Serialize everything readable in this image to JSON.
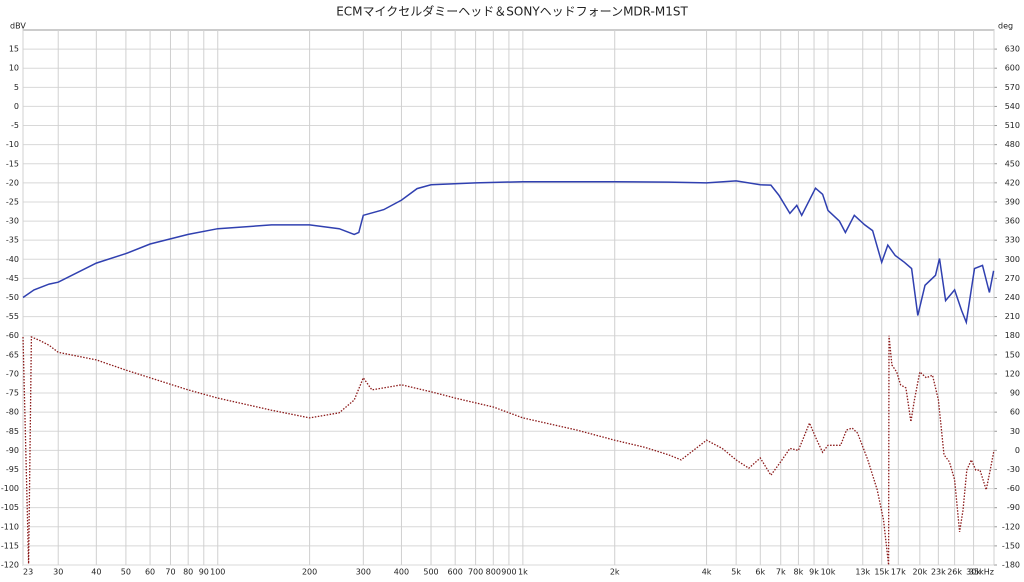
{
  "chart_data": {
    "type": "line",
    "title": "ECMマイクセルダミーヘッド＆SONYヘッドフォーンMDR-M1ST",
    "y_label": "dBV",
    "y2_label": "deg",
    "xscale": "log",
    "grid": true,
    "xlim": [
      23,
      35000
    ],
    "xticks": [
      23,
      30,
      40,
      50,
      60,
      70,
      80,
      90,
      100,
      200,
      300,
      400,
      500,
      600,
      700,
      800,
      900,
      {
        "value": 1000,
        "label": "1k"
      },
      {
        "value": 2000,
        "label": "2k"
      },
      {
        "value": 4000,
        "label": "4k"
      },
      {
        "value": 5000,
        "label": "5k"
      },
      {
        "value": 6000,
        "label": "6k"
      },
      {
        "value": 7000,
        "label": "7k"
      },
      {
        "value": 8000,
        "label": "8k"
      },
      {
        "value": 9000,
        "label": "9k"
      },
      {
        "value": 10000,
        "label": "10k"
      },
      {
        "value": 13000,
        "label": "13k"
      },
      {
        "value": 15000,
        "label": "15k"
      },
      {
        "value": 17000,
        "label": "17k"
      },
      {
        "value": 20000,
        "label": "20k"
      },
      {
        "value": 23000,
        "label": "23k"
      },
      {
        "value": 26000,
        "label": "26k"
      },
      {
        "value": 30000,
        "label": "30k"
      },
      {
        "value": 35000,
        "label": "35kHz"
      }
    ],
    "ylim": [
      -120,
      20
    ],
    "yticks": [
      -120,
      -115,
      -110,
      -105,
      -100,
      -95,
      -90,
      -85,
      -80,
      -75,
      -70,
      -65,
      -60,
      -55,
      -50,
      -45,
      -40,
      -35,
      -30,
      -25,
      -20,
      -15,
      -10,
      -5,
      0,
      5,
      10,
      15
    ],
    "y2lim": [
      -180,
      660
    ],
    "y2ticks": [
      -180,
      -150,
      -120,
      -90,
      -60,
      -30,
      0,
      30,
      60,
      90,
      120,
      150,
      180,
      210,
      240,
      270,
      300,
      330,
      360,
      390,
      420,
      450,
      480,
      510,
      540,
      570,
      600,
      630
    ],
    "series": [
      {
        "color": "#3040b0",
        "style": "solid",
        "x": [
          23,
          25,
          28,
          30,
          40,
          50,
          60,
          80,
          100,
          150,
          200,
          250,
          280,
          290,
          300,
          350,
          400,
          450,
          500,
          700,
          1000,
          2000,
          3000,
          4000,
          5000,
          6000,
          6500,
          6900,
          7500,
          7900,
          8200,
          9100,
          9600,
          10000,
          10900,
          11400,
          12200,
          13200,
          14000,
          15000,
          15700,
          16600,
          17800,
          18800,
          19700,
          20800,
          22500,
          23200,
          24300,
          26000,
          27400,
          28400,
          30200,
          32100,
          33800,
          34900
        ],
        "values": [
          -50,
          -48,
          -46.5,
          -46,
          -41,
          -38.5,
          -36,
          -33.5,
          -32,
          -31,
          -31,
          -32,
          -33.5,
          -33,
          -28.5,
          -27,
          -24.5,
          -21.5,
          -20.5,
          -20,
          -19.7,
          -19.7,
          -19.8,
          -20,
          -19.5,
          -20.5,
          -20.6,
          -23.2,
          -28,
          -25.9,
          -28.5,
          -21.4,
          -23,
          -27.2,
          -30,
          -33,
          -28.5,
          -31,
          -32.5,
          -40.8,
          -36.3,
          -39,
          -40.8,
          -42.4,
          -54.7,
          -46.8,
          -44.2,
          -39.8,
          -50.8,
          -48,
          -53.4,
          -56.5,
          -42.4,
          -41.6,
          -48.7,
          -43
        ]
      },
      {
        "color": "#8b1a1a",
        "style": "dotted",
        "axis": "y2",
        "x": [
          23,
          24,
          24.5,
          26,
          28,
          30,
          40,
          50,
          60,
          80,
          100,
          150,
          200,
          250,
          280,
          300,
          320,
          400,
          500,
          600,
          800,
          1000,
          1500,
          2000,
          2500,
          3000,
          3300,
          4000,
          4500,
          5000,
          5500,
          6000,
          6500,
          7000,
          7500,
          8000,
          8700,
          9200,
          9600,
          10000,
          11000,
          11500,
          12000,
          12500,
          13500,
          14500,
          15200,
          15800,
          15850,
          16200,
          16800,
          17300,
          18000,
          18700,
          19200,
          20000,
          21000,
          22000,
          23000,
          24000,
          25000,
          26000,
          27000,
          27700,
          28500,
          29500,
          30500,
          31500,
          33000,
          34000,
          35000
        ],
        "values": [
          178,
          -178,
          178,
          173,
          165,
          154,
          142,
          126,
          114,
          95,
          82,
          63,
          51,
          59,
          79,
          114,
          95,
          103,
          92,
          82,
          68,
          51,
          32,
          16,
          5,
          -7,
          -15,
          16,
          3,
          -15,
          -28,
          -12,
          -39,
          -18,
          3,
          0,
          43,
          16,
          -3,
          8,
          8,
          32,
          35,
          27,
          -15,
          -62,
          -109,
          -180,
          180,
          134,
          123,
          103,
          98,
          45,
          79,
          123,
          114,
          118,
          79,
          -7,
          -18,
          -46,
          -128,
          -94,
          -31,
          -15,
          -31,
          -31,
          -62,
          -31,
          0
        ]
      }
    ]
  }
}
